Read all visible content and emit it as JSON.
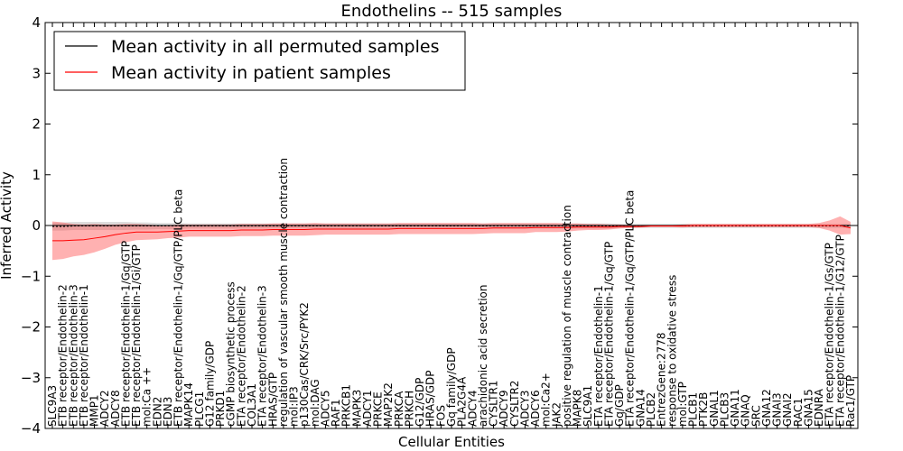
{
  "chart_data": {
    "type": "line",
    "title": "Endothelins -- 515 samples",
    "xlabel": "Cellular Entities",
    "ylabel": "Inferred Activity",
    "ylim": [
      -4,
      4
    ],
    "yticks": [
      -4,
      -3,
      -2,
      -1,
      0,
      1,
      2,
      3,
      4
    ],
    "legend_position": "top-left",
    "legend": [
      "Mean activity in all permuted samples",
      "Mean activity in patient samples"
    ],
    "categories": [
      "SLC9A3",
      "ETB receptor/Endothelin-2",
      "ETB receptor/Endothelin-3",
      "ETB receptor/Endothelin-1",
      "MMP1",
      "ADCY2",
      "ADCY8",
      "ETB receptor/Endothelin-1/Gq/GTP",
      "ETB receptor/Endothelin-1/Gi/GTP",
      "mol:Ca ++",
      "EDN2",
      "EDN3",
      "ETB receptor/Endothelin-1/Gq/GTP/PLC beta",
      "MAPK14",
      "PLCG1",
      "G12 family/GDP",
      "PRKD1",
      "cGMP biosynthetic process",
      "ETA receptor/Endothelin-2",
      "COL3A1",
      "ETA receptor/Endothelin-3",
      "HRAS/GTP",
      "regulation of vascular smooth muscle contraction",
      "mol:IP3",
      "p130Cas/CRK/Src/PYK2",
      "mol:DAG",
      "ADCY5",
      "RAF1",
      "PRKCB1",
      "MAPK3",
      "ADCY1",
      "PRKCE",
      "MAP2K2",
      "PRKCA",
      "PRKCH",
      "G12/GDP",
      "HRAS/GDP",
      "FOS",
      "Gq family/GDP",
      "PLA2G4A",
      "ADCY4",
      "arachidonic acid secretion",
      "CYSLTR1",
      "ADCY9",
      "CYSLTR2",
      "ADCY3",
      "ADCY6",
      "mol:Ca2+",
      "JAK2",
      "positive regulation of muscle contraction",
      "MAPK8",
      "SLC9A1",
      "ETA receptor/Endothelin-1",
      "ETA receptor/Endothelin-1/Gq/GTP",
      "Gq/GDP",
      "ETA receptor/Endothelin-1/Gq/GTP/PLC beta",
      "GNA14",
      "PLCB2",
      "EntrezGene:2778",
      "response to oxidative stress",
      "mol:GTP",
      "PLCB1",
      "PTK2B",
      "GNAL1",
      "PLCB3",
      "GNA11",
      "GNAQ",
      "SRC",
      "GNA12",
      "GNAI3",
      "GNAI2",
      "RAC1",
      "GNA15",
      "EDNRA",
      "ETA receptor/Endothelin-1/Gs/GTP",
      "ETA receptor/Endothelin-1/G12/GTP",
      "Rac1/GTP"
    ],
    "series": [
      {
        "name": "Mean activity in all permuted samples",
        "color": "#000000",
        "values": [
          -0.02,
          -0.02,
          -0.01,
          -0.01,
          -0.01,
          -0.01,
          -0.01,
          -0.01,
          -0.01,
          -0.01,
          -0.01,
          -0.01,
          -0.01,
          -0.01,
          -0.01,
          -0.01,
          -0.01,
          -0.01,
          -0.01,
          -0.01,
          -0.01,
          -0.01,
          -0.01,
          -0.01,
          -0.01,
          -0.01,
          -0.01,
          -0.01,
          -0.01,
          -0.01,
          -0.01,
          -0.01,
          -0.01,
          -0.01,
          -0.01,
          -0.01,
          -0.01,
          -0.01,
          -0.01,
          -0.01,
          -0.01,
          -0.01,
          -0.01,
          -0.01,
          -0.01,
          -0.01,
          -0.01,
          -0.01,
          -0.01,
          -0.01,
          -0.01,
          -0.01,
          -0.01,
          -0.01,
          -0.01,
          -0.01,
          -0.01,
          -0.01,
          -0.01,
          -0.01,
          -0.01,
          -0.01,
          -0.01,
          -0.01,
          -0.01,
          -0.01,
          -0.01,
          -0.01,
          -0.01,
          -0.01,
          -0.01,
          -0.01,
          -0.01,
          -0.01,
          -0.01,
          -0.01,
          -0.01
        ],
        "spread": [
          0.08,
          0.08,
          0.08,
          0.08,
          0.08,
          0.08,
          0.08,
          0.08,
          0.07,
          0.07,
          0.06,
          0.06,
          0.06,
          0.05,
          0.05,
          0.05,
          0.05,
          0.05,
          0.05,
          0.05,
          0.05,
          0.05,
          0.05,
          0.05,
          0.05,
          0.05,
          0.05,
          0.05,
          0.05,
          0.05,
          0.05,
          0.05,
          0.05,
          0.05,
          0.05,
          0.05,
          0.05,
          0.05,
          0.05,
          0.05,
          0.05,
          0.05,
          0.05,
          0.05,
          0.05,
          0.05,
          0.05,
          0.05,
          0.05,
          0.05,
          0.05,
          0.05,
          0.05,
          0.05,
          0.04,
          0.04,
          0.04,
          0.04,
          0.04,
          0.04,
          0.04,
          0.04,
          0.04,
          0.04,
          0.04,
          0.04,
          0.04,
          0.04,
          0.04,
          0.04,
          0.04,
          0.04,
          0.04,
          0.04,
          0.04,
          0.04,
          0.04
        ]
      },
      {
        "name": "Mean activity in patient samples",
        "color": "#ff0000",
        "values": [
          -0.3,
          -0.3,
          -0.29,
          -0.28,
          -0.25,
          -0.22,
          -0.18,
          -0.15,
          -0.13,
          -0.13,
          -0.13,
          -0.12,
          -0.11,
          -0.1,
          -0.1,
          -0.1,
          -0.1,
          -0.1,
          -0.09,
          -0.09,
          -0.09,
          -0.08,
          -0.08,
          -0.08,
          -0.08,
          -0.07,
          -0.07,
          -0.07,
          -0.07,
          -0.07,
          -0.07,
          -0.07,
          -0.07,
          -0.06,
          -0.06,
          -0.06,
          -0.06,
          -0.06,
          -0.06,
          -0.06,
          -0.06,
          -0.06,
          -0.05,
          -0.05,
          -0.05,
          -0.05,
          -0.04,
          -0.04,
          -0.04,
          -0.04,
          -0.03,
          -0.03,
          -0.03,
          -0.03,
          -0.02,
          -0.02,
          -0.02,
          -0.01,
          -0.01,
          -0.01,
          -0.01,
          0.0,
          0.0,
          0.0,
          0.0,
          0.0,
          0.0,
          0.0,
          0.0,
          0.0,
          0.0,
          0.0,
          0.0,
          0.0,
          0.0,
          0.0,
          -0.05
        ],
        "spread": [
          0.38,
          0.36,
          0.32,
          0.3,
          0.28,
          0.24,
          0.2,
          0.18,
          0.16,
          0.15,
          0.14,
          0.13,
          0.13,
          0.12,
          0.12,
          0.12,
          0.12,
          0.12,
          0.12,
          0.12,
          0.12,
          0.12,
          0.12,
          0.12,
          0.12,
          0.12,
          0.11,
          0.11,
          0.11,
          0.11,
          0.11,
          0.11,
          0.11,
          0.11,
          0.11,
          0.11,
          0.11,
          0.11,
          0.11,
          0.11,
          0.11,
          0.1,
          0.1,
          0.1,
          0.1,
          0.1,
          0.09,
          0.09,
          0.09,
          0.08,
          0.07,
          0.06,
          0.06,
          0.05,
          0.04,
          0.03,
          0.02,
          0.02,
          0.02,
          0.02,
          0.03,
          0.03,
          0.03,
          0.03,
          0.03,
          0.03,
          0.03,
          0.03,
          0.03,
          0.03,
          0.03,
          0.03,
          0.03,
          0.05,
          0.1,
          0.18,
          0.12
        ]
      }
    ]
  }
}
